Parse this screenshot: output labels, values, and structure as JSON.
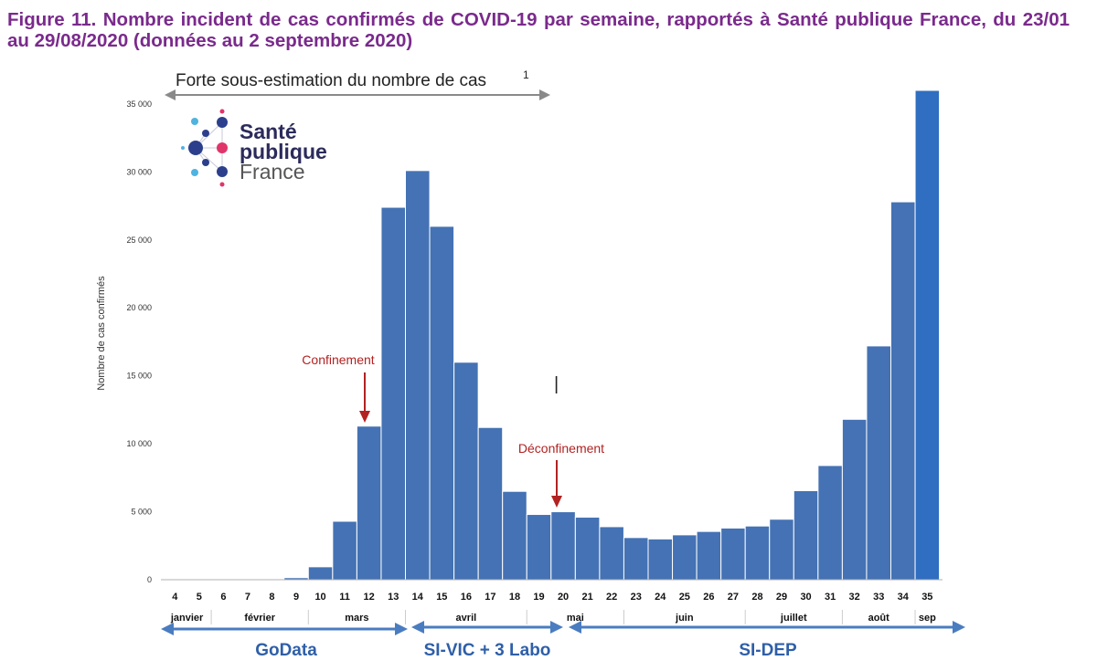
{
  "figure": {
    "title": "Figure 11. Nombre incident de cas confirmés de COVID-19 par semaine, rapportés à Santé publique France, du 23/01 au 29/08/2020 (données au 2 septembre 2020)"
  },
  "logo": {
    "line1": "Santé",
    "line2": "publique",
    "line3": "France"
  },
  "banner": {
    "text": "Forte sous-estimation du nombre de cas",
    "superscript": "1"
  },
  "annotations": {
    "confinement": "Confinement",
    "deconfinement": "Déconfinement",
    "cursor": "|"
  },
  "systems": [
    "GoData",
    "SI-VIC + 3 Labo",
    "SI-DEP"
  ],
  "colors": {
    "bar": "#4472b4",
    "bar_last": "#2f6ec0",
    "title": "#7a2a8c",
    "annotation": "#b22222",
    "system_arrow": "#4a7cc0",
    "system_label": "#2e5fa8"
  },
  "chart_data": {
    "type": "bar",
    "title": "Nombre incident de cas confirmés de COVID-19 par semaine",
    "ylabel": "Nombre de cas confirmés",
    "xlabel": "",
    "ylim": [
      0,
      36000
    ],
    "yticks": [
      "0",
      "5 000",
      "10 000",
      "15 000",
      "20 000",
      "25 000",
      "30 000",
      "35 000"
    ],
    "categories": [
      "4",
      "5",
      "6",
      "7",
      "8",
      "9",
      "10",
      "11",
      "12",
      "13",
      "14",
      "15",
      "16",
      "17",
      "18",
      "19",
      "20",
      "21",
      "22",
      "23",
      "24",
      "25",
      "26",
      "27",
      "28",
      "29",
      "30",
      "31",
      "32",
      "33",
      "34",
      "35"
    ],
    "values": [
      0,
      0,
      0,
      0,
      0,
      150,
      950,
      4300,
      11300,
      27400,
      30100,
      26000,
      16000,
      11200,
      6500,
      4800,
      5000,
      4600,
      3900,
      3100,
      3000,
      3300,
      3550,
      3800,
      3950,
      4450,
      6550,
      8400,
      11800,
      17200,
      27800,
      36000
    ],
    "months": [
      {
        "label": "janvier",
        "from": "4",
        "to": "5"
      },
      {
        "label": "février",
        "from": "6",
        "to": "9"
      },
      {
        "label": "mars",
        "from": "10",
        "to": "13"
      },
      {
        "label": "avril",
        "from": "14",
        "to": "18"
      },
      {
        "label": "mai",
        "from": "19",
        "to": "22"
      },
      {
        "label": "juin",
        "from": "23",
        "to": "27"
      },
      {
        "label": "juillet",
        "from": "28",
        "to": "31"
      },
      {
        "label": "août",
        "from": "32",
        "to": "34"
      },
      {
        "label": "sep",
        "from": "35",
        "to": "35"
      }
    ]
  }
}
